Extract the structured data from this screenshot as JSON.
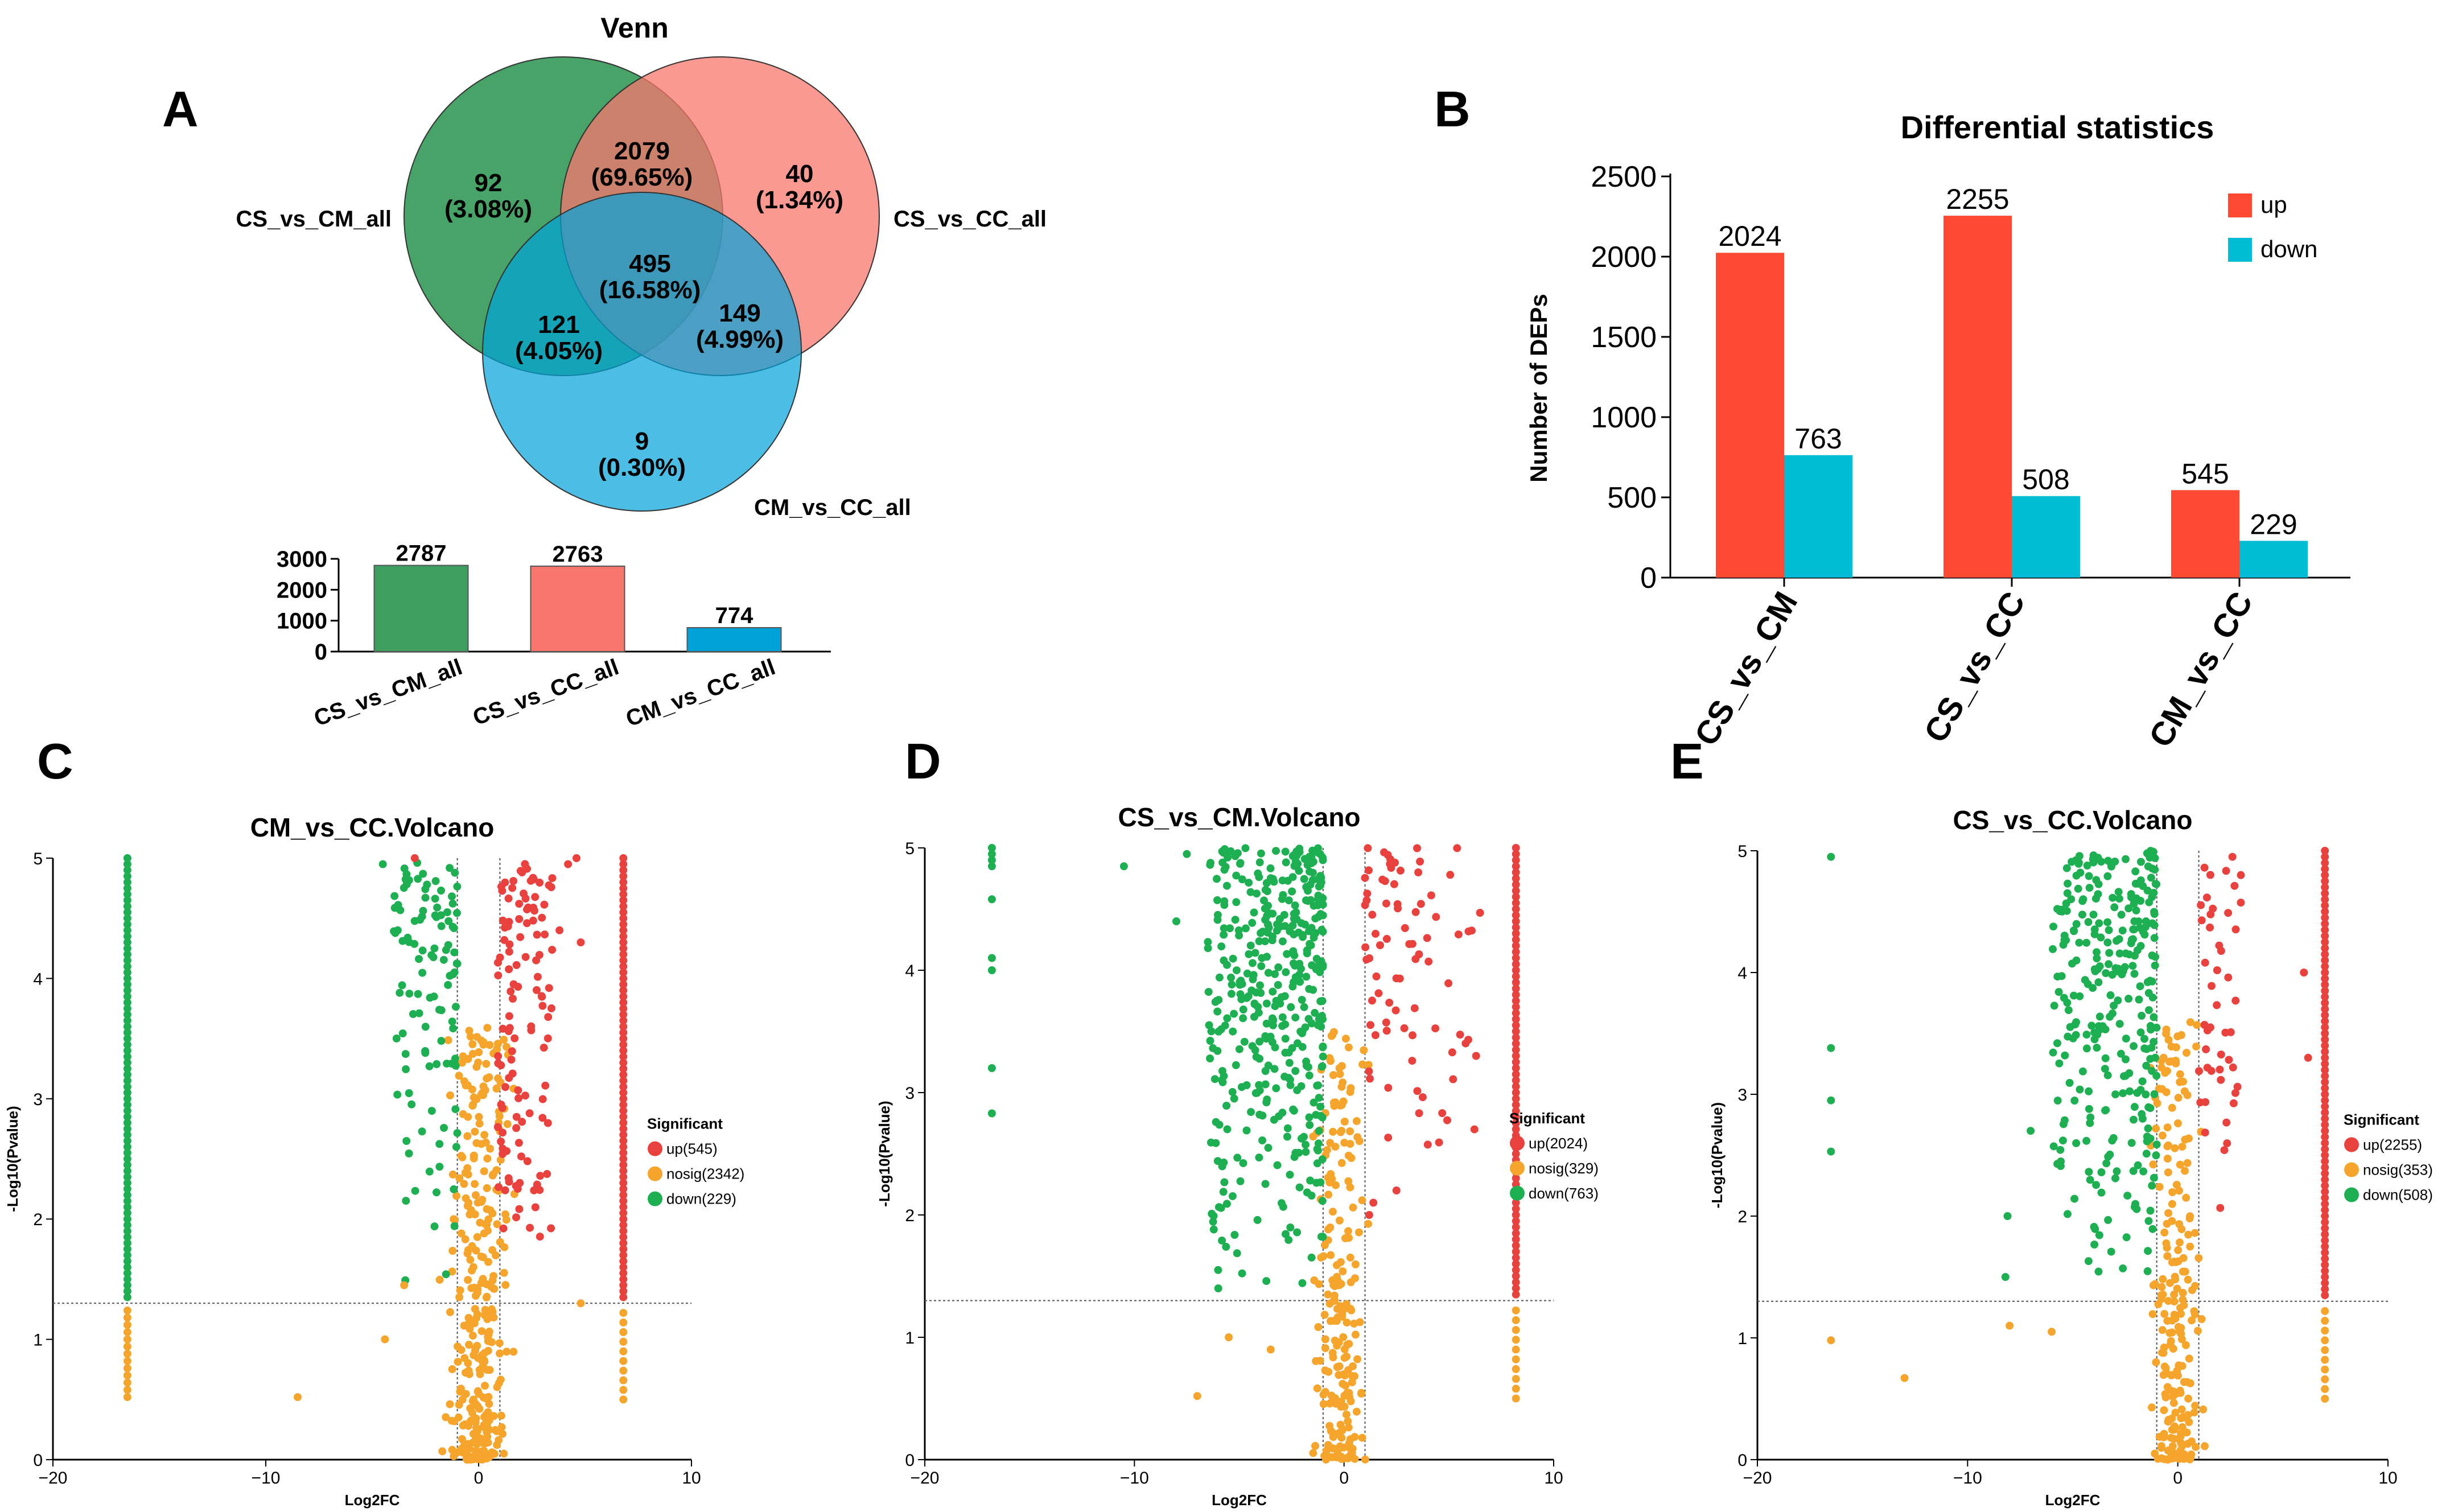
{
  "panel_labels": {
    "a": "A",
    "b": "B",
    "c": "C",
    "d": "D",
    "e": "E"
  },
  "colors": {
    "up": "#e8413e",
    "nosig": "#f5a42c",
    "down": "#1eaf52",
    "bar_up": "#fe4a32",
    "bar_down": "#00bcd4",
    "venn_a": "#3e9e60",
    "venn_b": "#f8766d",
    "venn_c": "#00a2da"
  },
  "chart_data": [
    {
      "type": "venn",
      "title": "Venn",
      "sets": [
        "CS_vs_CM_all",
        "CS_vs_CC_all",
        "CM_vs_CC_all"
      ],
      "regions": [
        {
          "sets": [
            "CS_vs_CM_all"
          ],
          "count": "92",
          "pct": "(3.08%)"
        },
        {
          "sets": [
            "CS_vs_CM_all",
            "CS_vs_CC_all"
          ],
          "count": "2079",
          "pct": "(69.65%)"
        },
        {
          "sets": [
            "CS_vs_CC_all"
          ],
          "count": "40",
          "pct": "(1.34%)"
        },
        {
          "sets": [
            "CS_vs_CM_all",
            "CS_vs_CC_all",
            "CM_vs_CC_all"
          ],
          "count": "495",
          "pct": "(16.58%)"
        },
        {
          "sets": [
            "CS_vs_CM_all",
            "CM_vs_CC_all"
          ],
          "count": "121",
          "pct": "(4.05%)"
        },
        {
          "sets": [
            "CS_vs_CC_all",
            "CM_vs_CC_all"
          ],
          "count": "149",
          "pct": "(4.99%)"
        },
        {
          "sets": [
            "CM_vs_CC_all"
          ],
          "count": "9",
          "pct": "(0.30%)"
        }
      ]
    },
    {
      "type": "bar",
      "title": "",
      "categories": [
        "CS_vs_CM_all",
        "CS_vs_CC_all",
        "CM_vs_CC_all"
      ],
      "values": [
        2787,
        2763,
        774
      ],
      "value_labels": [
        "2787",
        "2763",
        "774"
      ],
      "ylim": [
        0,
        3000
      ],
      "yticks": [
        "0",
        "1000",
        "2000",
        "3000"
      ]
    },
    {
      "type": "bar",
      "title": "Differential statistics",
      "ylabel": "Number of DEPs",
      "categories": [
        "CS_vs_CM",
        "CS_vs_CC",
        "CM_vs_CC"
      ],
      "series": [
        {
          "name": "up",
          "values": [
            2024,
            2255,
            545
          ],
          "labels": [
            "2024",
            "2255",
            "545"
          ]
        },
        {
          "name": "down",
          "values": [
            763,
            508,
            229
          ],
          "labels": [
            "763",
            "508",
            "229"
          ]
        }
      ],
      "ylim": [
        0,
        2500
      ],
      "yticks": [
        "0",
        "500",
        "1000",
        "1500",
        "2000",
        "2500"
      ]
    },
    {
      "type": "scatter",
      "title": "CM_vs_CC.Volcano",
      "xlabel": "Log2FC",
      "ylabel": "-Log10(Pvalue)",
      "xlim": [
        -20,
        10
      ],
      "ylim": [
        0,
        5
      ],
      "xticks": [
        "-20",
        "-10",
        "0",
        "10"
      ],
      "yticks": [
        "0",
        "1",
        "2",
        "3",
        "4",
        "5"
      ],
      "fc_threshold": 1,
      "p_threshold": 1.3,
      "legend_title": "Significant",
      "legend": [
        "up(545)",
        "nosig(2342)",
        "down(229)"
      ],
      "cap_x": [
        -16.5,
        6.8
      ],
      "up_cloud": {
        "x": [
          0.9,
          3.5
        ],
        "y": [
          1.5,
          5
        ]
      },
      "down_cloud": {
        "x": [
          -4,
          -1
        ],
        "y": [
          1.35,
          5
        ]
      },
      "nosig_cloud": {
        "x": [
          -1.6,
          1.6
        ],
        "y": [
          0,
          3.6
        ]
      },
      "counts": {
        "up": 120,
        "down": 110,
        "nosig": 320
      },
      "extra_up": [
        [
          -3,
          5
        ],
        [
          4.8,
          4.3
        ],
        [
          4.2,
          4.95
        ],
        [
          3.8,
          4.4
        ],
        [
          4.6,
          5
        ]
      ],
      "extra_nosig": [
        [
          -8.5,
          0.52
        ],
        [
          4.8,
          1.3
        ],
        [
          -4.4,
          1.0
        ],
        [
          -3.5,
          1.45
        ]
      ],
      "extra_down": [
        [
          -4.5,
          4.95
        ],
        [
          -3.8,
          4.4
        ]
      ]
    },
    {
      "type": "scatter",
      "title": "CS_vs_CM.Volcano",
      "xlabel": "Log2FC",
      "ylabel": "-Log10(Pvalue)",
      "xlim": [
        -20,
        10
      ],
      "ylim": [
        0,
        5
      ],
      "xticks": [
        "-20",
        "-10",
        "0",
        "10"
      ],
      "yticks": [
        "0",
        "1",
        "2",
        "3",
        "4",
        "5"
      ],
      "fc_threshold": 1,
      "p_threshold": 1.3,
      "legend_title": "Significant",
      "legend": [
        "up(2024)",
        "nosig(329)",
        "down(763)"
      ],
      "cap_x": [
        -16.8,
        8.2
      ],
      "up_cloud": {
        "x": [
          1,
          6.5
        ],
        "y": [
          2.4,
          5
        ]
      },
      "down_cloud": {
        "x": [
          -6.5,
          -1
        ],
        "y": [
          1.4,
          5
        ]
      },
      "nosig_cloud": {
        "x": [
          -1.6,
          1.2
        ],
        "y": [
          0,
          3.5
        ]
      },
      "counts": {
        "up": 80,
        "down": 420,
        "nosig": 210
      },
      "extra_up": [
        [
          2.5,
          2.2
        ],
        [
          1.4,
          2.1
        ],
        [
          6.3,
          3.3
        ],
        [
          1.2,
          2.0
        ]
      ],
      "extra_nosig": [
        [
          -7,
          0.52
        ],
        [
          -5.5,
          1.0
        ],
        [
          -3.5,
          0.9
        ]
      ],
      "extra_down": [
        [
          -10.5,
          4.85
        ],
        [
          -8,
          4.4
        ],
        [
          -7.5,
          4.95
        ],
        [
          -6,
          1.4
        ]
      ]
    },
    {
      "type": "scatter",
      "title": "CS_vs_CC.Volcano",
      "xlabel": "Log2FC",
      "ylabel": "-Log10(Pvalue)",
      "xlim": [
        -20,
        10
      ],
      "ylim": [
        0,
        5
      ],
      "xticks": [
        "-20",
        "-10",
        "0",
        "10"
      ],
      "yticks": [
        "0",
        "1",
        "2",
        "3",
        "4",
        "5"
      ],
      "fc_threshold": 1,
      "p_threshold": 1.3,
      "legend_title": "Significant",
      "legend": [
        "up(2255)",
        "nosig(353)",
        "down(508)"
      ],
      "cap_x": [
        -16.5,
        7
      ],
      "up_cloud": {
        "x": [
          1,
          3
        ],
        "y": [
          2.0,
          5
        ]
      },
      "down_cloud": {
        "x": [
          -6,
          -1
        ],
        "y": [
          1.3,
          5
        ]
      },
      "nosig_cloud": {
        "x": [
          -1.6,
          1.3
        ],
        "y": [
          0,
          3.6
        ]
      },
      "counts": {
        "up": 45,
        "down": 300,
        "nosig": 220
      },
      "extra_up": [
        [
          6,
          4.0
        ],
        [
          6.2,
          3.3
        ],
        [
          3,
          4.8
        ],
        [
          2.6,
          4.95
        ]
      ],
      "extra_nosig": [
        [
          -16.5,
          0.98
        ],
        [
          -13,
          0.67
        ],
        [
          -8,
          1.1
        ],
        [
          -6,
          1.05
        ]
      ],
      "extra_down": [
        [
          -7,
          2.7
        ],
        [
          -8.1,
          2.0
        ],
        [
          -8.2,
          1.5
        ]
      ]
    }
  ]
}
